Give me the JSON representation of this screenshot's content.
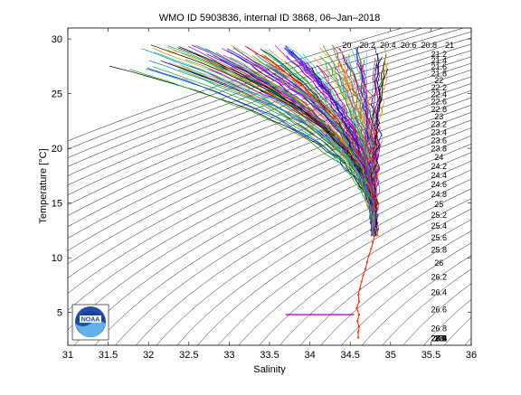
{
  "chart_data": {
    "type": "line",
    "title": "WMO ID 5903836, internal ID 3868, 06–Jan–2018",
    "xlabel": "Salinity",
    "ylabel": "Temperature [°C]",
    "xlim": [
      31,
      36
    ],
    "ylim": [
      2,
      31
    ],
    "xticks": [
      "31",
      "31.5",
      "32",
      "32.5",
      "33",
      "33.5",
      "34",
      "34.5",
      "35",
      "35.5",
      "36"
    ],
    "yticks": [
      "5",
      "10",
      "15",
      "20",
      "25",
      "30"
    ],
    "grid": false,
    "legend": "none",
    "density_contour_labels": [
      "20",
      "20.2",
      "20.4",
      "20.6",
      "20.8",
      "21",
      "21.2",
      "21.4",
      "21.6",
      "21.8",
      "22",
      "22.2",
      "22.4",
      "22.6",
      "22.8",
      "23",
      "23.2",
      "23.4",
      "23.6",
      "23.8",
      "24",
      "24.2",
      "24.4",
      "24.6",
      "24.8",
      "25",
      "25.2",
      "25.4",
      "25.6",
      "25.8",
      "26",
      "26.2",
      "26.4",
      "26.6",
      "26.8",
      "27",
      "27.2",
      "27.4",
      "27.6",
      "27.8",
      "28",
      "28.2",
      "28.4",
      "28.6",
      "28.8"
    ],
    "deep_profile": {
      "name": "deep profile",
      "points": [
        {
          "s": 34.6,
          "t": 2.7
        },
        {
          "s": 34.6,
          "t": 3.2
        },
        {
          "s": 34.61,
          "t": 3.7
        },
        {
          "s": 34.59,
          "t": 4.2
        },
        {
          "s": 34.61,
          "t": 4.8
        },
        {
          "s": 34.58,
          "t": 5.4
        },
        {
          "s": 34.61,
          "t": 6.0
        },
        {
          "s": 34.6,
          "t": 6.6
        },
        {
          "s": 34.62,
          "t": 7.2
        },
        {
          "s": 34.64,
          "t": 7.8
        },
        {
          "s": 34.66,
          "t": 8.4
        },
        {
          "s": 34.69,
          "t": 9.0
        },
        {
          "s": 34.71,
          "t": 9.6
        },
        {
          "s": 34.73,
          "t": 10.2
        },
        {
          "s": 34.76,
          "t": 10.8
        },
        {
          "s": 34.78,
          "t": 11.4
        },
        {
          "s": 34.8,
          "t": 12.0
        }
      ]
    },
    "outlier_segment": {
      "s_start": 33.7,
      "s_end": 34.55,
      "t": 4.8,
      "color": "#cc00cc"
    },
    "envelope": {
      "note_left": [
        {
          "s": 31.2,
          "t": 29.3
        },
        {
          "s": 33.0,
          "t": 27.5
        },
        {
          "s": 34.0,
          "t": 23.5
        },
        {
          "s": 34.6,
          "t": 18.5
        },
        {
          "s": 34.75,
          "t": 15.0
        },
        {
          "s": 34.78,
          "t": 12.0
        }
      ],
      "note_right": [
        {
          "s": 35.0,
          "t": 29.3
        },
        {
          "s": 35.0,
          "t": 25.0
        },
        {
          "s": 35.05,
          "t": 20.0
        },
        {
          "s": 35.05,
          "t": 16.5
        },
        {
          "s": 34.95,
          "t": 13.0
        },
        {
          "s": 34.8,
          "t": 12.0
        }
      ]
    },
    "series_colors": [
      "#0000ff",
      "#ff0000",
      "#00aa00",
      "#00cccc",
      "#cc00cc",
      "#aaaa00",
      "#000000",
      "#ff8800",
      "#7f00ff",
      "#008888"
    ],
    "profile_count": 140
  },
  "logo": {
    "name": "NOAA",
    "text": "NOAA"
  }
}
